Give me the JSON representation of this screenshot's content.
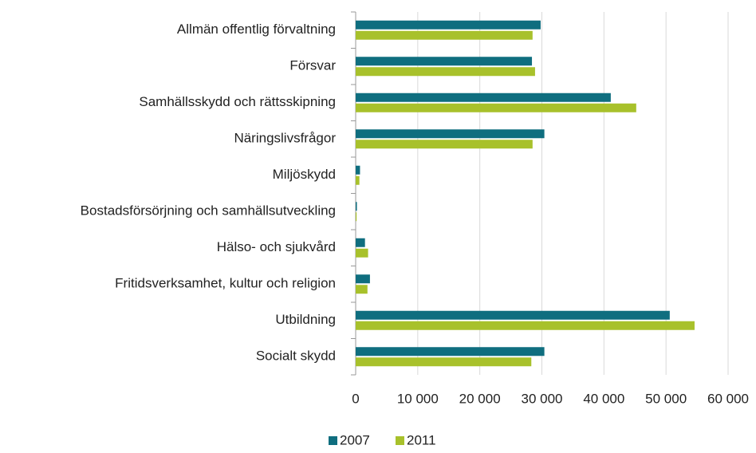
{
  "chart_data": {
    "type": "hbar",
    "categories": [
      "Allmän offentlig förvaltning",
      "Försvar",
      "Samhällsskydd och rättsskipning",
      "Näringslivsfrågor",
      "Miljöskydd",
      "Bostadsförsörjning och samhällsutveckling",
      "Hälso- och sjukvård",
      "Fritidsverksamhet, kultur och religion",
      "Utbildning",
      "Socialt skydd"
    ],
    "series": [
      {
        "name": "2007",
        "color": "#0f6e7f",
        "values": [
          29800,
          28400,
          41100,
          30400,
          700,
          200,
          1500,
          2300,
          50600,
          30400
        ]
      },
      {
        "name": "2011",
        "color": "#a8c12b",
        "values": [
          28500,
          28900,
          45200,
          28500,
          600,
          150,
          2000,
          1900,
          54600,
          28300
        ]
      }
    ],
    "xlim": [
      0,
      60000
    ],
    "xticks": [
      0,
      {
        "value": 10000,
        "label": "10 000"
      },
      {
        "value": 20000,
        "label": "20 000"
      },
      {
        "value": 30000,
        "label": "30 000"
      },
      {
        "value": 40000,
        "label": "40 000"
      },
      {
        "value": 50000,
        "label": "50 000"
      },
      {
        "value": 60000,
        "label": "60 000"
      }
    ],
    "grid": true,
    "legend": "bottom"
  }
}
